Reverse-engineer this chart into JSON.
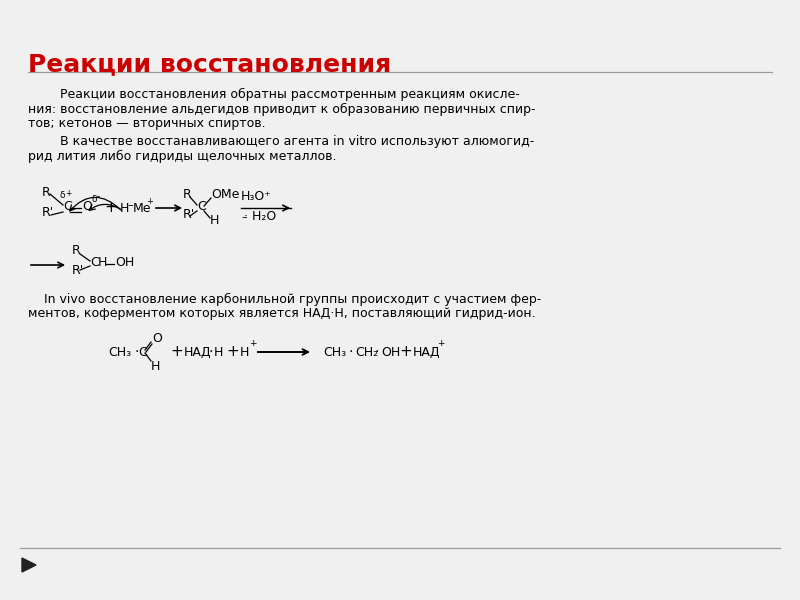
{
  "title": "Реакции восстановления",
  "title_color": "#cc0000",
  "title_fontsize": 18,
  "bg_color": "#f0f0f0",
  "text_color": "#000000",
  "para1_line1": "        Реакции восстановления обратны рассмотренным реакциям окисле-",
  "para1_line2": "ния: восстановление альдегидов приводит к образованию первичных спир-",
  "para1_line3": "тов; кетонов — вторичных спиртов.",
  "para2_line1": "        В качестве восстанавливающего агента in vitro используют алюмогид-",
  "para2_line2": "рид лития либо гидриды щелочных металлов.",
  "para3_line1": "    In vivo восстановление карбонильной группы происходит с участием фер-",
  "para3_line2": "ментов, коферментом которых является НАД·Н, поставляющий гидрид-ион.",
  "footer_arrow": true
}
